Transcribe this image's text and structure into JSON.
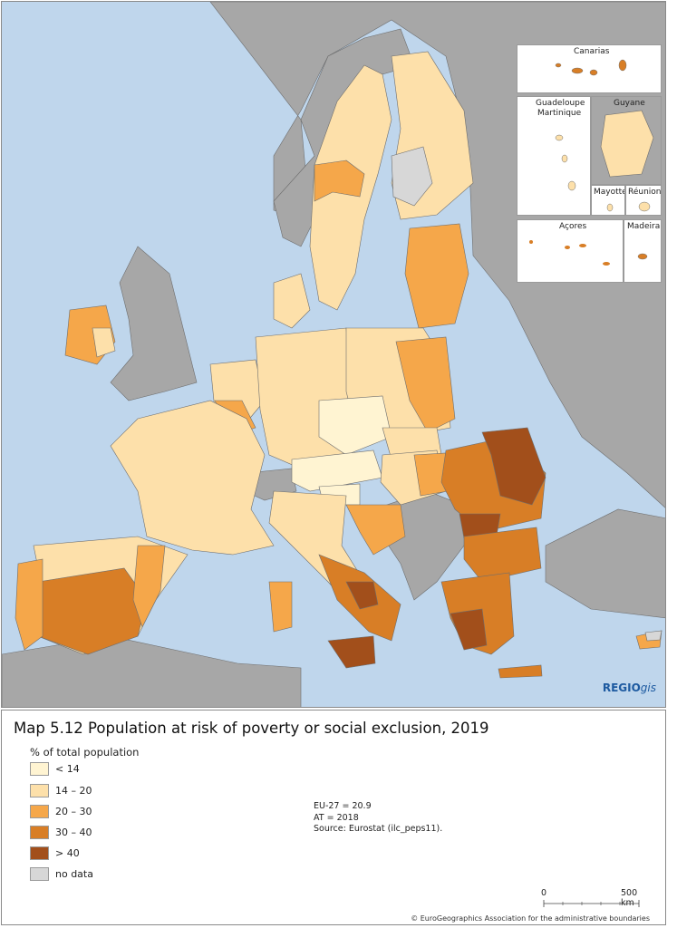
{
  "title": "Map 5.12 Population at risk of poverty or social exclusion, 2019",
  "legend": {
    "heading": "% of total population",
    "classes": [
      {
        "label": "< 14",
        "color": "#fff4d2"
      },
      {
        "label": "14 – 20",
        "color": "#fde0aa"
      },
      {
        "label": "20 – 30",
        "color": "#f5a74a"
      },
      {
        "label": "30 – 40",
        "color": "#d87e26"
      },
      {
        "label": "> 40",
        "color": "#a24f1b"
      },
      {
        "label": "no data",
        "color": "#d7d7d7"
      }
    ]
  },
  "notes": [
    "EU-27 = 20.9",
    "AT = 2018",
    "Source: Eurostat (ilc_peps11)."
  ],
  "scale": {
    "start": "0",
    "end": "500 km"
  },
  "copyright": "© EuroGeographics Association for the administrative boundaries",
  "logo": {
    "main": "REGIO",
    "suffix": "gis"
  },
  "insets": {
    "canarias": "Canarias",
    "guadeloupe": "Guadeloupe",
    "martinique": "Martinique",
    "guyane": "Guyane",
    "mayotte": "Mayotte",
    "reunion": "Réunion",
    "acores": "Açores",
    "madeira": "Madeira"
  },
  "colors": {
    "sea": "#bfd6ec",
    "non_eu_land": "#a7a7a7",
    "border": "#6e6e6e"
  }
}
